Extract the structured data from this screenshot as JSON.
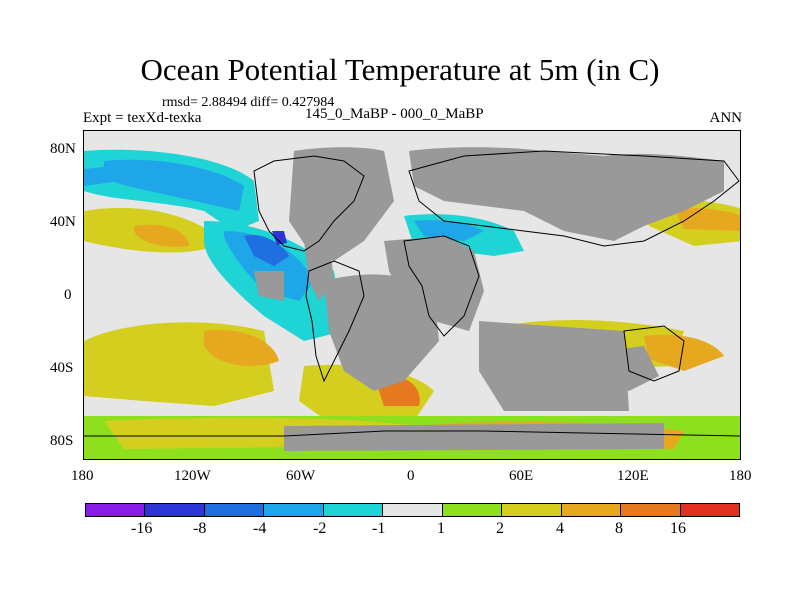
{
  "title": "Ocean Potential Temperature at 5m (in C)",
  "stats": "rmsd= 2.88494 diff= 0.427984",
  "experiment": "Expt = texXd-texka",
  "subtitle": "145_0_MaBP - 000_0_MaBP",
  "season": "ANN",
  "lat_labels": [
    "80N",
    "40N",
    "0",
    "40S",
    "80S"
  ],
  "lon_labels": [
    "180",
    "120W",
    "60W",
    "0",
    "60E",
    "120E",
    "180"
  ],
  "colorbar": {
    "colors": [
      "#8a1ee6",
      "#2d35d6",
      "#1f6fe0",
      "#1fa6e8",
      "#1fd4d4",
      "#e6e6e6",
      "#8ee01f",
      "#d4cf1f",
      "#e6a81f",
      "#e6781f",
      "#e0301f"
    ],
    "labels": [
      "-16",
      "-8",
      "-4",
      "-2",
      "-1",
      "1",
      "2",
      "4",
      "8",
      "16"
    ]
  },
  "legend_colors": {
    "land": "#999999",
    "neutral": "#e6e6e6"
  }
}
